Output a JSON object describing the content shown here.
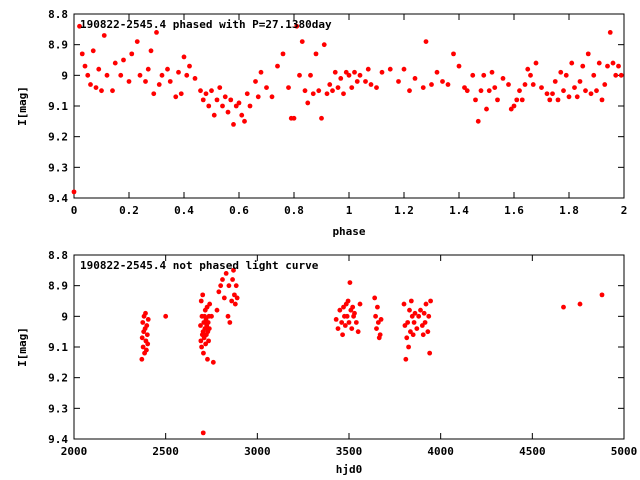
{
  "chart_data": [
    {
      "type": "scatter",
      "title": "190822-2545.4 phased with P=27.1380day",
      "xlabel": "phase",
      "ylabel": "I[mag]",
      "xlim": [
        0,
        2
      ],
      "ylim": [
        8.8,
        9.4
      ],
      "y_inverted": true,
      "grid": false,
      "marker_color": "#ff0000",
      "xticks": [
        "0",
        "0.2",
        "0.4",
        "0.6",
        "0.8",
        "1",
        "1.2",
        "1.4",
        "1.6",
        "1.8",
        "2"
      ],
      "yticks": [
        "8.8",
        "8.9",
        "9",
        "9.1",
        "9.2",
        "9.3",
        "9.4"
      ],
      "points": [
        [
          0.0,
          9.38
        ],
        [
          0.02,
          8.84
        ],
        [
          0.03,
          8.93
        ],
        [
          0.04,
          8.97
        ],
        [
          0.05,
          9.0
        ],
        [
          0.06,
          9.03
        ],
        [
          0.07,
          8.92
        ],
        [
          0.08,
          9.04
        ],
        [
          0.09,
          8.98
        ],
        [
          0.1,
          9.05
        ],
        [
          0.11,
          8.87
        ],
        [
          0.12,
          9.0
        ],
        [
          0.14,
          9.05
        ],
        [
          0.15,
          8.96
        ],
        [
          0.17,
          9.0
        ],
        [
          0.18,
          8.95
        ],
        [
          0.2,
          9.02
        ],
        [
          0.21,
          8.93
        ],
        [
          0.23,
          8.89
        ],
        [
          0.24,
          9.0
        ],
        [
          0.26,
          9.02
        ],
        [
          0.27,
          8.98
        ],
        [
          0.28,
          8.92
        ],
        [
          0.29,
          9.06
        ],
        [
          0.3,
          8.86
        ],
        [
          0.31,
          9.03
        ],
        [
          0.32,
          9.0
        ],
        [
          0.34,
          8.98
        ],
        [
          0.35,
          9.02
        ],
        [
          0.37,
          9.07
        ],
        [
          0.38,
          8.99
        ],
        [
          0.39,
          9.06
        ],
        [
          0.4,
          8.94
        ],
        [
          0.41,
          9.0
        ],
        [
          0.42,
          8.97
        ],
        [
          0.44,
          9.01
        ],
        [
          0.46,
          9.05
        ],
        [
          0.47,
          9.08
        ],
        [
          0.48,
          9.06
        ],
        [
          0.49,
          9.1
        ],
        [
          0.5,
          9.05
        ],
        [
          0.51,
          9.13
        ],
        [
          0.52,
          9.08
        ],
        [
          0.53,
          9.04
        ],
        [
          0.54,
          9.1
        ],
        [
          0.55,
          9.07
        ],
        [
          0.56,
          9.12
        ],
        [
          0.57,
          9.08
        ],
        [
          0.58,
          9.16
        ],
        [
          0.59,
          9.1
        ],
        [
          0.6,
          9.09
        ],
        [
          0.61,
          9.13
        ],
        [
          0.62,
          9.15
        ],
        [
          0.63,
          9.06
        ],
        [
          0.64,
          9.1
        ],
        [
          0.66,
          9.02
        ],
        [
          0.67,
          9.07
        ],
        [
          0.68,
          8.99
        ],
        [
          0.7,
          9.04
        ],
        [
          0.72,
          9.07
        ],
        [
          0.74,
          8.97
        ],
        [
          0.76,
          8.93
        ],
        [
          0.78,
          9.04
        ],
        [
          0.79,
          9.14
        ],
        [
          0.8,
          9.14
        ],
        [
          0.81,
          8.84
        ],
        [
          0.82,
          9.0
        ],
        [
          0.83,
          8.89
        ],
        [
          0.84,
          9.05
        ],
        [
          0.85,
          9.09
        ],
        [
          0.86,
          9.0
        ],
        [
          0.87,
          9.06
        ],
        [
          0.88,
          8.93
        ],
        [
          0.89,
          9.05
        ],
        [
          0.9,
          9.14
        ],
        [
          0.91,
          8.9
        ],
        [
          0.92,
          9.06
        ],
        [
          0.93,
          9.03
        ],
        [
          0.94,
          9.05
        ],
        [
          0.95,
          8.99
        ],
        [
          0.96,
          9.04
        ],
        [
          0.97,
          9.01
        ],
        [
          0.98,
          9.06
        ],
        [
          0.99,
          8.99
        ],
        [
          1.0,
          9.0
        ],
        [
          1.01,
          9.04
        ],
        [
          1.02,
          8.99
        ],
        [
          1.03,
          9.02
        ],
        [
          1.04,
          9.0
        ],
        [
          1.06,
          9.02
        ],
        [
          1.07,
          8.98
        ],
        [
          1.08,
          9.03
        ],
        [
          1.1,
          9.04
        ],
        [
          1.12,
          8.99
        ],
        [
          1.15,
          8.98
        ],
        [
          1.18,
          9.02
        ],
        [
          1.2,
          8.98
        ],
        [
          1.22,
          9.05
        ],
        [
          1.24,
          9.01
        ],
        [
          1.27,
          9.04
        ],
        [
          1.28,
          8.89
        ],
        [
          1.3,
          9.03
        ],
        [
          1.32,
          8.99
        ],
        [
          1.34,
          9.02
        ],
        [
          1.36,
          9.03
        ],
        [
          1.38,
          8.93
        ],
        [
          1.4,
          8.97
        ],
        [
          1.42,
          9.04
        ],
        [
          1.43,
          9.05
        ],
        [
          1.45,
          9.0
        ],
        [
          1.46,
          9.08
        ],
        [
          1.47,
          9.15
        ],
        [
          1.48,
          9.05
        ],
        [
          1.49,
          9.0
        ],
        [
          1.5,
          9.11
        ],
        [
          1.51,
          9.05
        ],
        [
          1.52,
          8.99
        ],
        [
          1.53,
          9.04
        ],
        [
          1.54,
          9.08
        ],
        [
          1.56,
          9.01
        ],
        [
          1.58,
          9.03
        ],
        [
          1.59,
          9.11
        ],
        [
          1.6,
          9.1
        ],
        [
          1.61,
          9.08
        ],
        [
          1.62,
          9.05
        ],
        [
          1.63,
          9.08
        ],
        [
          1.64,
          9.03
        ],
        [
          1.65,
          8.98
        ],
        [
          1.66,
          9.0
        ],
        [
          1.67,
          9.03
        ],
        [
          1.68,
          8.96
        ],
        [
          1.7,
          9.04
        ],
        [
          1.72,
          9.06
        ],
        [
          1.73,
          9.08
        ],
        [
          1.74,
          9.06
        ],
        [
          1.75,
          9.02
        ],
        [
          1.76,
          9.08
        ],
        [
          1.77,
          8.99
        ],
        [
          1.78,
          9.05
        ],
        [
          1.79,
          9.0
        ],
        [
          1.8,
          9.07
        ],
        [
          1.81,
          8.96
        ],
        [
          1.82,
          9.04
        ],
        [
          1.83,
          9.07
        ],
        [
          1.84,
          9.02
        ],
        [
          1.85,
          8.97
        ],
        [
          1.86,
          9.05
        ],
        [
          1.87,
          8.93
        ],
        [
          1.88,
          9.06
        ],
        [
          1.89,
          9.0
        ],
        [
          1.9,
          9.05
        ],
        [
          1.91,
          8.96
        ],
        [
          1.92,
          9.08
        ],
        [
          1.93,
          9.03
        ],
        [
          1.94,
          8.97
        ],
        [
          1.95,
          8.86
        ],
        [
          1.96,
          8.96
        ],
        [
          1.97,
          9.0
        ],
        [
          1.98,
          8.97
        ],
        [
          1.99,
          9.0
        ]
      ]
    },
    {
      "type": "scatter",
      "title": "190822-2545.4 not phased light curve",
      "xlabel": "hjd0",
      "ylabel": "I[mag]",
      "xlim": [
        2000,
        5000
      ],
      "ylim": [
        8.8,
        9.4
      ],
      "y_inverted": true,
      "grid": false,
      "marker_color": "#ff0000",
      "xticks": [
        "2000",
        "2500",
        "3000",
        "3500",
        "4000",
        "4500",
        "5000"
      ],
      "yticks": [
        "8.8",
        "8.9",
        "9",
        "9.1",
        "9.2",
        "9.3",
        "9.4"
      ],
      "points": [
        [
          2370,
          9.14
        ],
        [
          2372,
          9.07
        ],
        [
          2375,
          9.02
        ],
        [
          2377,
          9.1
        ],
        [
          2380,
          9.05
        ],
        [
          2382,
          9.0
        ],
        [
          2385,
          9.12
        ],
        [
          2388,
          9.04
        ],
        [
          2390,
          8.99
        ],
        [
          2392,
          9.08
        ],
        [
          2395,
          9.11
        ],
        [
          2397,
          9.03
        ],
        [
          2400,
          9.06
        ],
        [
          2402,
          9.09
        ],
        [
          2405,
          9.01
        ],
        [
          2500,
          9.0
        ],
        [
          2690,
          9.03
        ],
        [
          2692,
          9.08
        ],
        [
          2694,
          8.95
        ],
        [
          2696,
          9.1
        ],
        [
          2698,
          9.0
        ],
        [
          2700,
          9.06
        ],
        [
          2702,
          8.93
        ],
        [
          2704,
          9.05
        ],
        [
          2706,
          9.12
        ],
        [
          2708,
          9.02
        ],
        [
          2710,
          9.07
        ],
        [
          2712,
          9.0
        ],
        [
          2714,
          9.04
        ],
        [
          2716,
          8.98
        ],
        [
          2718,
          9.09
        ],
        [
          2720,
          9.01
        ],
        [
          2722,
          9.06
        ],
        [
          2724,
          9.03
        ],
        [
          2726,
          8.97
        ],
        [
          2728,
          9.14
        ],
        [
          2730,
          9.05
        ],
        [
          2732,
          9.02
        ],
        [
          2734,
          9.08
        ],
        [
          2736,
          9.0
        ],
        [
          2738,
          9.04
        ],
        [
          2740,
          8.96
        ],
        [
          2705,
          9.38
        ],
        [
          2760,
          9.15
        ],
        [
          2750,
          9.0
        ],
        [
          2780,
          8.98
        ],
        [
          2790,
          8.92
        ],
        [
          2800,
          8.9
        ],
        [
          2810,
          8.88
        ],
        [
          2820,
          8.94
        ],
        [
          2830,
          8.86
        ],
        [
          2840,
          9.0
        ],
        [
          2845,
          8.9
        ],
        [
          2850,
          9.02
        ],
        [
          2860,
          8.95
        ],
        [
          2865,
          8.88
        ],
        [
          2870,
          8.85
        ],
        [
          2875,
          8.93
        ],
        [
          2880,
          8.96
        ],
        [
          2885,
          8.9
        ],
        [
          2890,
          8.94
        ],
        [
          3430,
          9.01
        ],
        [
          3440,
          9.04
        ],
        [
          3450,
          8.98
        ],
        [
          3460,
          9.02
        ],
        [
          3465,
          9.06
        ],
        [
          3470,
          8.97
        ],
        [
          3475,
          9.0
        ],
        [
          3480,
          9.03
        ],
        [
          3485,
          8.96
        ],
        [
          3490,
          9.0
        ],
        [
          3495,
          8.95
        ],
        [
          3500,
          9.02
        ],
        [
          3505,
          8.89
        ],
        [
          3510,
          8.98
        ],
        [
          3515,
          9.04
        ],
        [
          3520,
          8.97
        ],
        [
          3525,
          9.0
        ],
        [
          3530,
          8.99
        ],
        [
          3540,
          9.02
        ],
        [
          3550,
          9.05
        ],
        [
          3560,
          8.96
        ],
        [
          3640,
          8.94
        ],
        [
          3645,
          9.0
        ],
        [
          3650,
          9.04
        ],
        [
          3655,
          8.97
        ],
        [
          3660,
          9.02
        ],
        [
          3665,
          9.07
        ],
        [
          3670,
          9.06
        ],
        [
          3675,
          9.01
        ],
        [
          3800,
          8.96
        ],
        [
          3805,
          9.03
        ],
        [
          3810,
          9.14
        ],
        [
          3815,
          9.07
        ],
        [
          3820,
          9.02
        ],
        [
          3825,
          9.1
        ],
        [
          3830,
          8.98
        ],
        [
          3835,
          9.05
        ],
        [
          3840,
          8.95
        ],
        [
          3845,
          9.0
        ],
        [
          3850,
          9.06
        ],
        [
          3855,
          9.02
        ],
        [
          3860,
          8.99
        ],
        [
          3870,
          9.04
        ],
        [
          3880,
          9.0
        ],
        [
          3890,
          8.98
        ],
        [
          3900,
          9.03
        ],
        [
          3905,
          9.06
        ],
        [
          3910,
          8.99
        ],
        [
          3915,
          9.02
        ],
        [
          3920,
          8.96
        ],
        [
          3930,
          9.05
        ],
        [
          3935,
          9.0
        ],
        [
          3940,
          9.12
        ],
        [
          3945,
          8.95
        ],
        [
          4670,
          8.97
        ],
        [
          4760,
          8.96
        ],
        [
          4880,
          8.93
        ]
      ]
    }
  ]
}
